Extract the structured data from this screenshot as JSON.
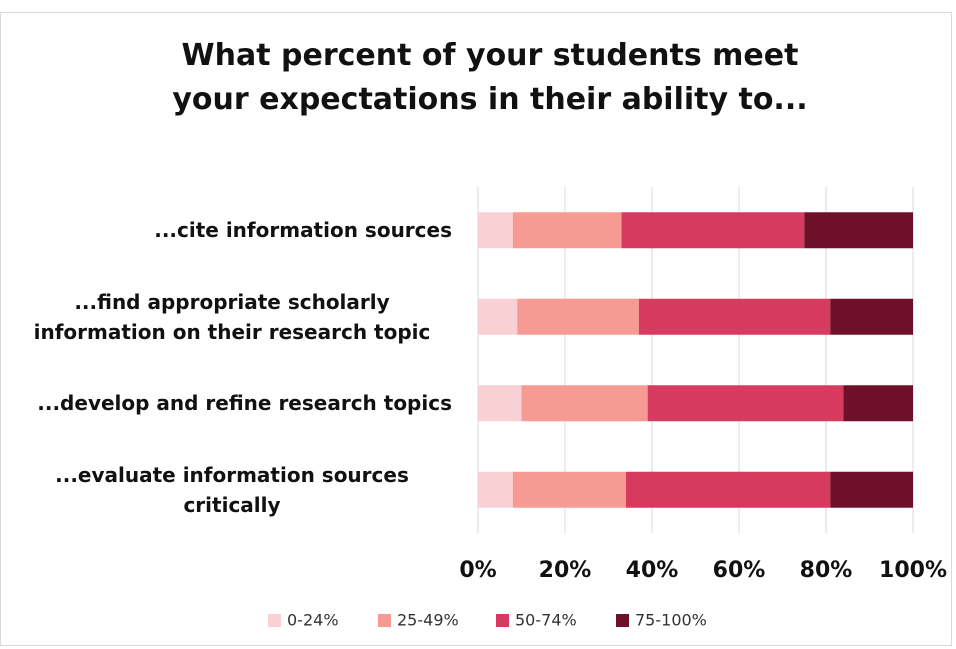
{
  "chart_data": {
    "type": "stacked-bar-horizontal",
    "title": "What percent of your students meet your expectations in their ability to...",
    "categories": [
      "...cite information sources",
      "...find appropriate scholarly information on their research topic",
      "...develop and refine research topics",
      "...evaluate information sources critically"
    ],
    "series": [
      {
        "name": "0-24%",
        "color": "#f9d0d4",
        "values": [
          8,
          9,
          10,
          8
        ]
      },
      {
        "name": "25-49%",
        "color": "#f69b94",
        "values": [
          25,
          28,
          29,
          26
        ]
      },
      {
        "name": "50-74%",
        "color": "#d63a5f",
        "values": [
          42,
          44,
          45,
          47
        ]
      },
      {
        "name": "75-100%",
        "color": "#6e1029",
        "values": [
          25,
          19,
          16,
          19
        ]
      }
    ],
    "xlim": [
      0,
      100
    ],
    "xticks": [
      {
        "value": 0,
        "label": "0%"
      },
      {
        "value": 20,
        "label": "20%"
      },
      {
        "value": 40,
        "label": "40%"
      },
      {
        "value": 60,
        "label": "60%"
      },
      {
        "value": 80,
        "label": "80%"
      },
      {
        "value": 100,
        "label": "100%"
      }
    ],
    "grid": true,
    "legend": "bottom"
  }
}
